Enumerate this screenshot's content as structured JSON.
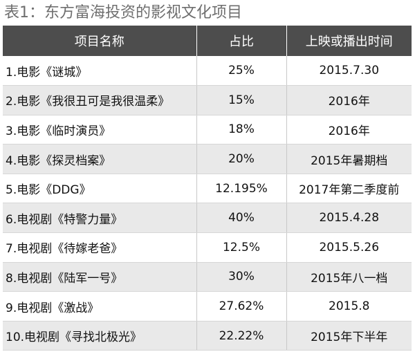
{
  "title": "表1：东方富海投资的影视文化项目",
  "headers": [
    "项目名称",
    "占比",
    "上映或播出时间"
  ],
  "rows": [
    {
      "name": "1.电影《谜城》",
      "ratio": "25%",
      "date": "2015.7.30"
    },
    {
      "name": "2.电影《我很丑可是我很温柔》",
      "ratio": "15%",
      "date": "2016年"
    },
    {
      "name": "3.电影《临时演员》",
      "ratio": "18%",
      "date": "2016年"
    },
    {
      "name": "4.电影《探灵档案》",
      "ratio": "20%",
      "date": "2015年暑期档"
    },
    {
      "name": "5.电影《DDG》",
      "ratio": "12.195%",
      "date": "2017年第二季度前"
    },
    {
      "name": "6.电视剧《特警力量》",
      "ratio": "40%",
      "date": "2015.4.28"
    },
    {
      "name": "7.电视剧《待嫁老爸》",
      "ratio": "12.5%",
      "date": "2015.5.26"
    },
    {
      "name": "8.电视剧《陆军一号》",
      "ratio": "30%",
      "date": "2015年八一档"
    },
    {
      "name": "9.电视剧《激战》",
      "ratio": "27.62%",
      "date": "2015.8"
    },
    {
      "name": "10.电视剧《寻找北极光》",
      "ratio": "22.22%",
      "date": "2015年下半年"
    }
  ]
}
